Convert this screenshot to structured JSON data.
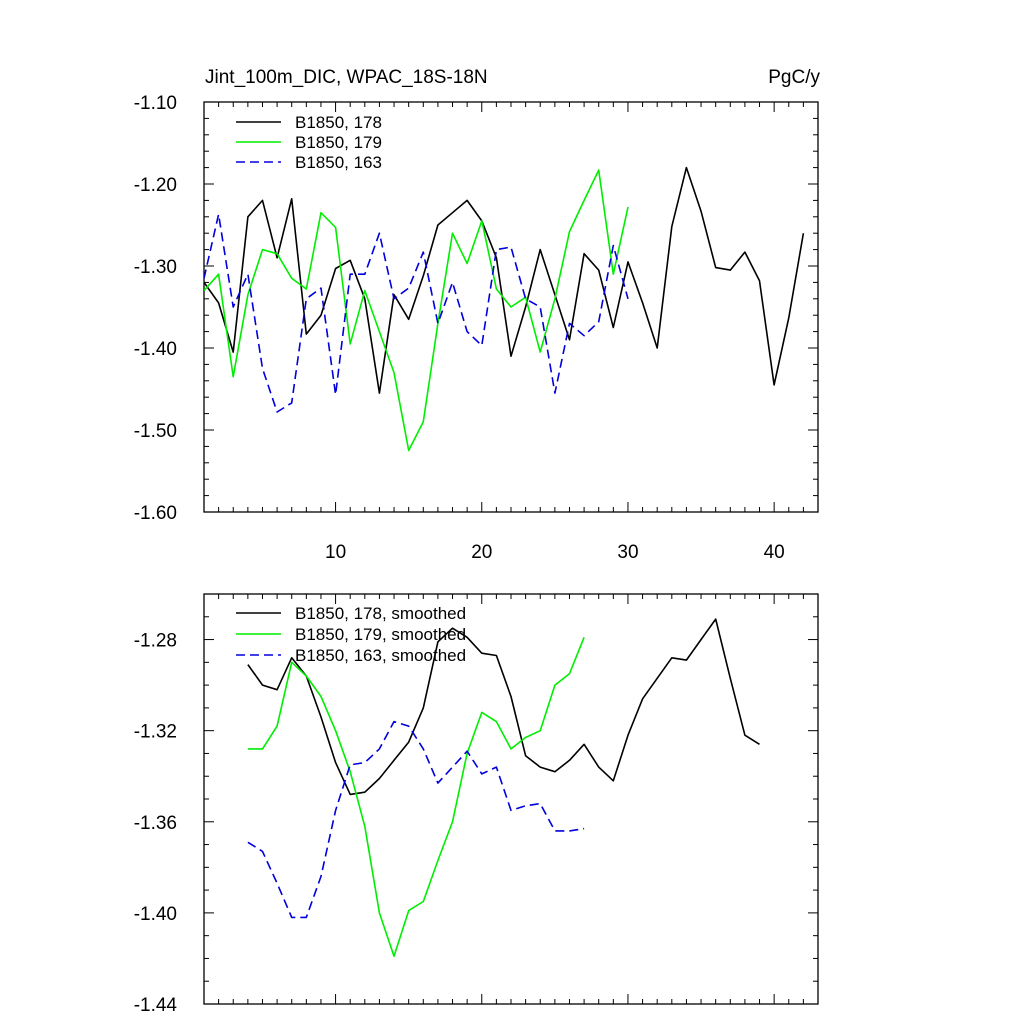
{
  "chart_data": [
    {
      "type": "line",
      "title_left": "Jint_100m_DIC, WPAC_18S-18N",
      "title_right": "PgC/y",
      "xlim": [
        1,
        43
      ],
      "ylim": [
        -1.6,
        -1.1
      ],
      "x_ticks": [
        10,
        20,
        30,
        40
      ],
      "x_tick_labels": [
        "10",
        "20",
        "30",
        "40"
      ],
      "y_ticks": [
        -1.6,
        -1.5,
        -1.4,
        -1.3,
        -1.2,
        -1.1
      ],
      "y_tick_labels": [
        "-1.60",
        "-1.50",
        "-1.40",
        "-1.30",
        "-1.20",
        "-1.10"
      ],
      "legend_position": "top-left",
      "series": [
        {
          "name": "B1850, 178",
          "color": "#000000",
          "dash": "solid",
          "x": [
            1,
            2,
            3,
            4,
            5,
            6,
            7,
            8,
            9,
            10,
            11,
            12,
            13,
            14,
            15,
            16,
            17,
            18,
            19,
            20,
            21,
            22,
            23,
            24,
            25,
            26,
            27,
            28,
            29,
            30,
            31,
            32,
            33,
            34,
            35,
            36,
            37,
            38,
            39,
            40,
            41,
            42
          ],
          "values": [
            -1.32,
            -1.345,
            -1.405,
            -1.24,
            -1.22,
            -1.29,
            -1.218,
            -1.383,
            -1.36,
            -1.303,
            -1.293,
            -1.34,
            -1.455,
            -1.335,
            -1.365,
            -1.312,
            -1.25,
            -1.235,
            -1.22,
            -1.245,
            -1.29,
            -1.41,
            -1.35,
            -1.28,
            -1.335,
            -1.39,
            -1.285,
            -1.305,
            -1.375,
            -1.295,
            -1.345,
            -1.4,
            -1.252,
            -1.18,
            -1.233,
            -1.302,
            -1.305,
            -1.283,
            -1.318,
            -1.445,
            -1.363,
            -1.26
          ]
        },
        {
          "name": "B1850, 179",
          "color": "#00ee00",
          "dash": "solid",
          "x": [
            1,
            2,
            3,
            4,
            5,
            6,
            7,
            8,
            9,
            10,
            11,
            12,
            13,
            14,
            15,
            16,
            17,
            18,
            19,
            20,
            21,
            22,
            23,
            24,
            25,
            26,
            27,
            28,
            29,
            30
          ],
          "values": [
            -1.33,
            -1.31,
            -1.435,
            -1.335,
            -1.28,
            -1.285,
            -1.315,
            -1.328,
            -1.235,
            -1.253,
            -1.395,
            -1.33,
            -1.38,
            -1.43,
            -1.525,
            -1.49,
            -1.37,
            -1.26,
            -1.297,
            -1.245,
            -1.328,
            -1.35,
            -1.338,
            -1.405,
            -1.34,
            -1.258,
            -1.22,
            -1.183,
            -1.31,
            -1.228
          ]
        },
        {
          "name": "B1850, 163",
          "color": "#0000dd",
          "dash": "dashed",
          "x": [
            1,
            2,
            3,
            4,
            5,
            6,
            7,
            8,
            9,
            10,
            11,
            12,
            13,
            14,
            15,
            16,
            17,
            18,
            19,
            20,
            21,
            22,
            23,
            24,
            25,
            26,
            27,
            28,
            29,
            30
          ],
          "values": [
            -1.315,
            -1.237,
            -1.35,
            -1.31,
            -1.425,
            -1.478,
            -1.467,
            -1.34,
            -1.327,
            -1.457,
            -1.31,
            -1.31,
            -1.26,
            -1.34,
            -1.327,
            -1.283,
            -1.37,
            -1.32,
            -1.38,
            -1.397,
            -1.28,
            -1.277,
            -1.34,
            -1.35,
            -1.455,
            -1.37,
            -1.385,
            -1.368,
            -1.275,
            -1.34
          ]
        }
      ]
    },
    {
      "type": "line",
      "xlim": [
        1,
        43
      ],
      "ylim": [
        -1.44,
        -1.26
      ],
      "x_ticks": [
        10,
        20,
        30,
        40
      ],
      "y_ticks": [
        -1.44,
        -1.4,
        -1.36,
        -1.32,
        -1.28
      ],
      "y_tick_labels": [
        "-1.44",
        "-1.40",
        "-1.36",
        "-1.32",
        "-1.28"
      ],
      "legend_position": "top-left",
      "series": [
        {
          "name": "B1850, 178, smoothed",
          "color": "#000000",
          "dash": "solid",
          "x": [
            4,
            5,
            6,
            7,
            8,
            9,
            10,
            11,
            12,
            13,
            14,
            15,
            16,
            17,
            18,
            19,
            20,
            21,
            22,
            23,
            24,
            25,
            26,
            27,
            28,
            29,
            30,
            31,
            32,
            33,
            34,
            35,
            36,
            37,
            38,
            39
          ],
          "values": [
            -1.291,
            -1.3,
            -1.302,
            -1.288,
            -1.296,
            -1.314,
            -1.334,
            -1.348,
            -1.347,
            -1.341,
            -1.333,
            -1.325,
            -1.31,
            -1.281,
            -1.275,
            -1.279,
            -1.286,
            -1.287,
            -1.305,
            -1.331,
            -1.336,
            -1.338,
            -1.333,
            -1.326,
            -1.336,
            -1.342,
            -1.322,
            -1.306,
            -1.297,
            -1.288,
            -1.289,
            -1.28,
            -1.271,
            -1.297,
            -1.322,
            -1.326
          ]
        },
        {
          "name": "B1850, 179, smoothed",
          "color": "#00ee00",
          "dash": "solid",
          "x": [
            4,
            5,
            6,
            7,
            8,
            9,
            10,
            11,
            12,
            13,
            14,
            15,
            16,
            17,
            18,
            19,
            20,
            21,
            22,
            23,
            24,
            25,
            26,
            27
          ],
          "values": [
            -1.328,
            -1.328,
            -1.318,
            -1.29,
            -1.296,
            -1.305,
            -1.32,
            -1.338,
            -1.362,
            -1.4,
            -1.419,
            -1.399,
            -1.395,
            -1.377,
            -1.36,
            -1.33,
            -1.312,
            -1.316,
            -1.328,
            -1.323,
            -1.32,
            -1.3,
            -1.295,
            -1.279
          ]
        },
        {
          "name": "B1850, 163, smoothed",
          "color": "#0000dd",
          "dash": "dashed",
          "x": [
            4,
            5,
            6,
            7,
            8,
            9,
            10,
            11,
            12,
            13,
            14,
            15,
            16,
            17,
            18,
            19,
            20,
            21,
            22,
            23,
            24,
            25,
            26,
            27
          ],
          "values": [
            -1.369,
            -1.373,
            -1.387,
            -1.402,
            -1.402,
            -1.384,
            -1.355,
            -1.335,
            -1.334,
            -1.328,
            -1.316,
            -1.318,
            -1.328,
            -1.343,
            -1.336,
            -1.329,
            -1.339,
            -1.336,
            -1.355,
            -1.353,
            -1.352,
            -1.364,
            -1.364,
            -1.363
          ]
        }
      ]
    }
  ]
}
